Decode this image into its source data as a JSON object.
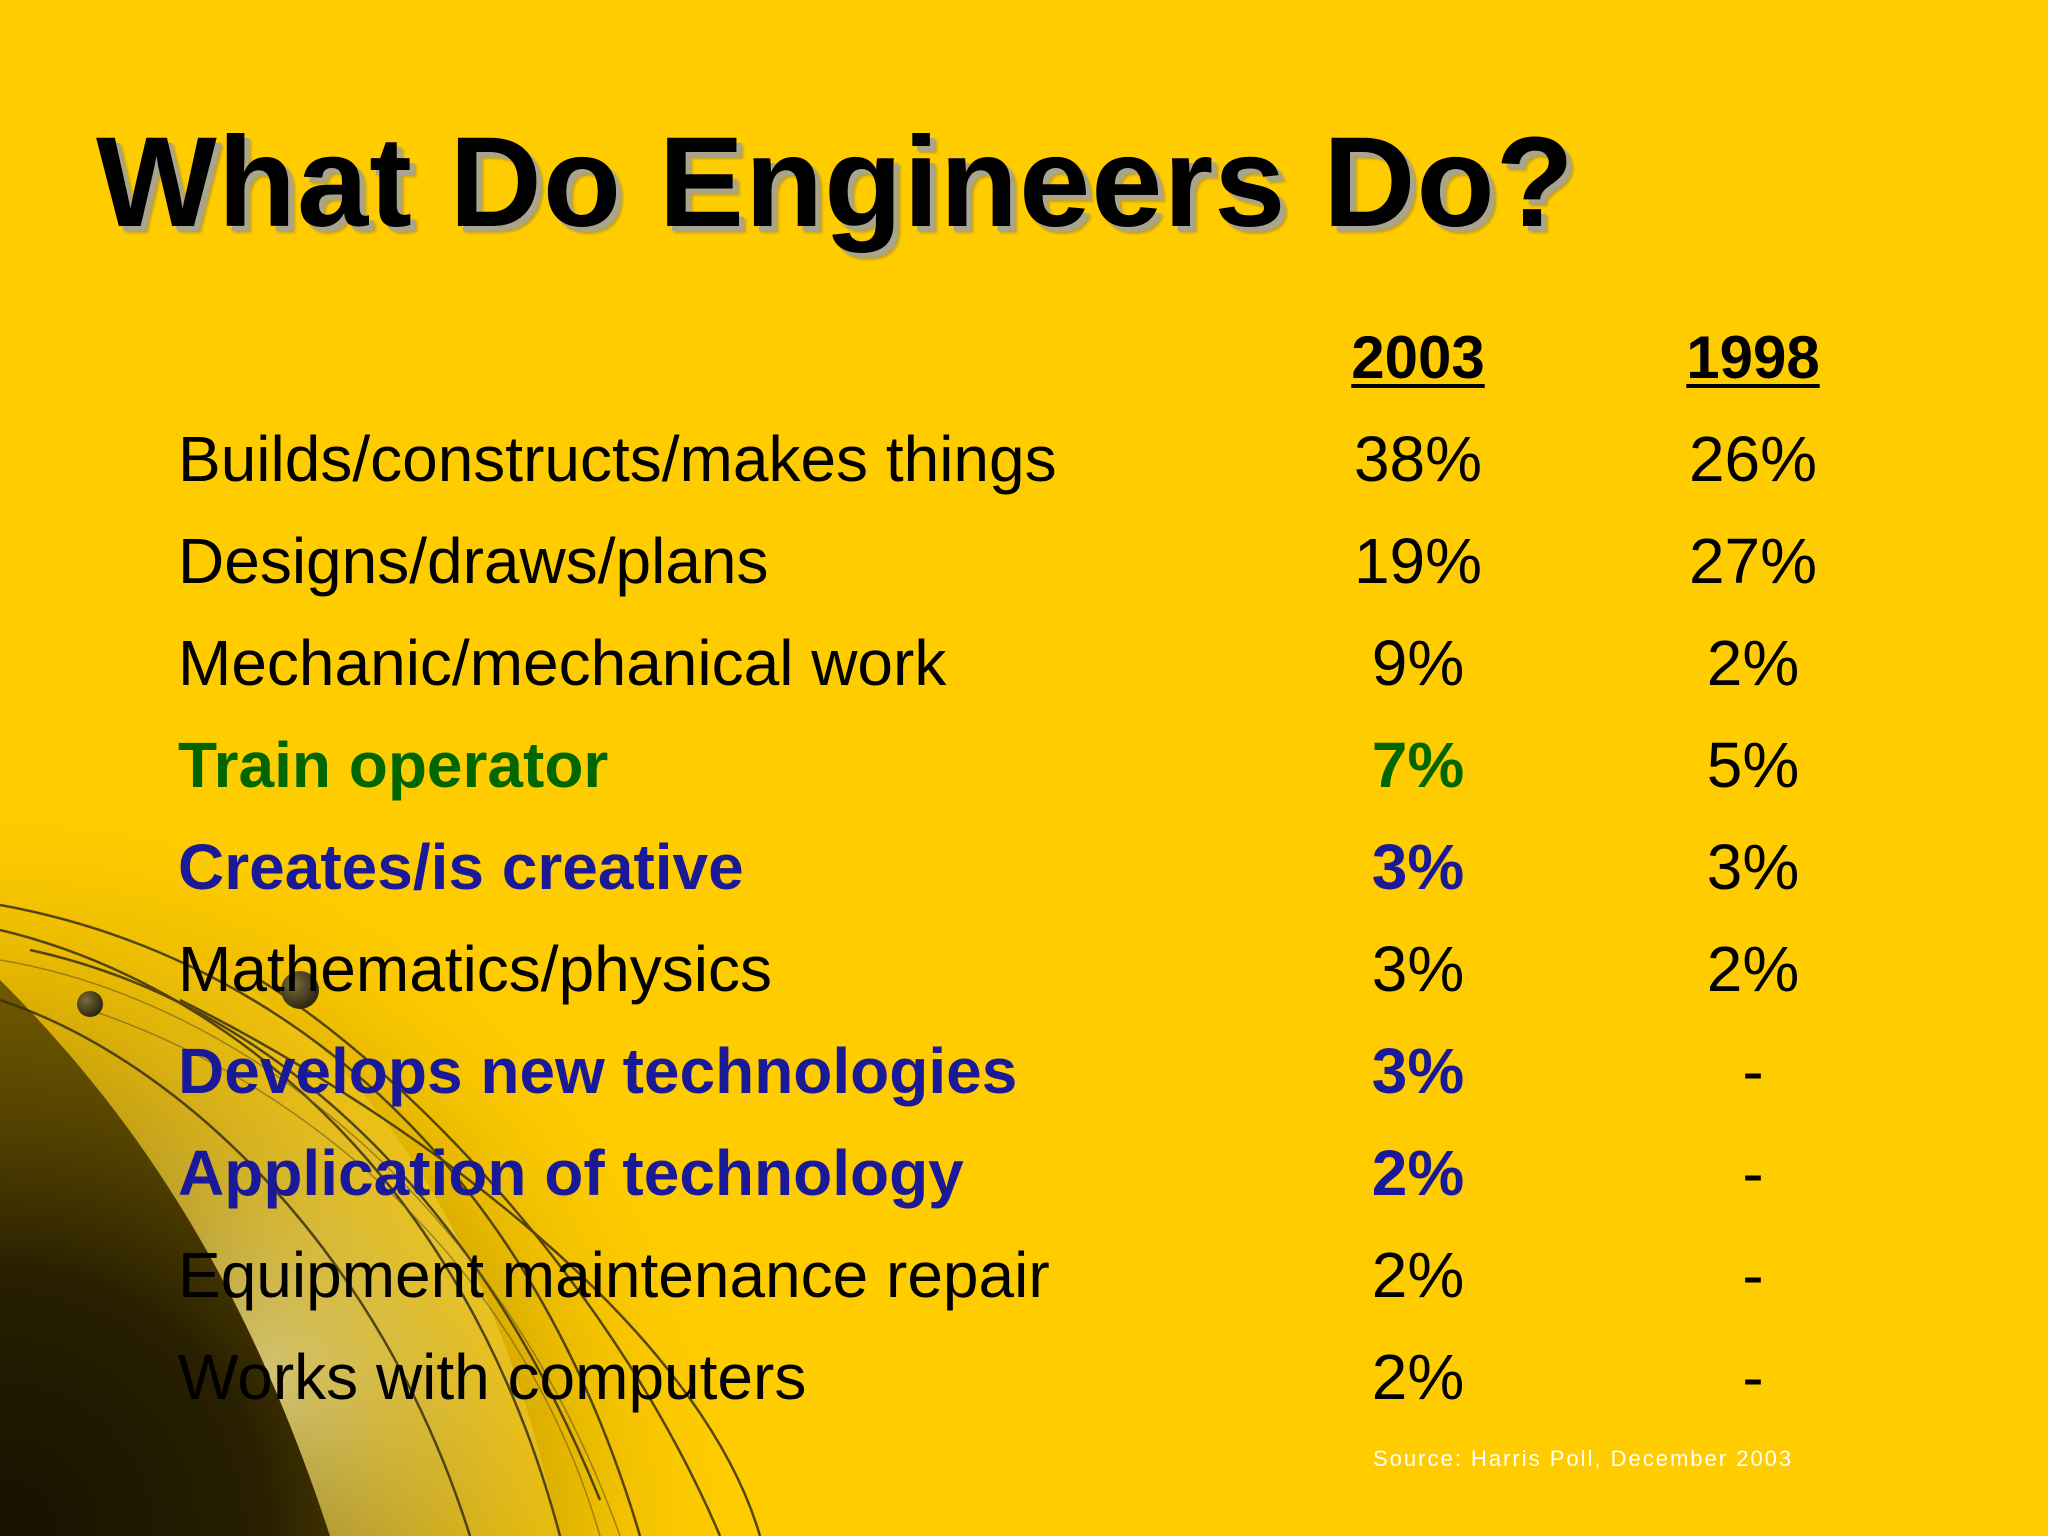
{
  "slide": {
    "title": "What Do Engineers Do?",
    "columns": [
      "2003",
      "1998"
    ],
    "rows": [
      {
        "label": "Builds/constructs/makes things",
        "v2003": "38%",
        "v1998": "26%",
        "style": "normal"
      },
      {
        "label": "Designs/draws/plans",
        "v2003": "19%",
        "v1998": "27%",
        "style": "normal"
      },
      {
        "label": "Mechanic/mechanical work",
        "v2003": "9%",
        "v1998": "2%",
        "style": "normal"
      },
      {
        "label": "Train operator",
        "v2003": "7%",
        "v1998": "5%",
        "style": "green"
      },
      {
        "label": "Creates/is creative",
        "v2003": "3%",
        "v1998": "3%",
        "style": "blue"
      },
      {
        "label": "Mathematics/physics",
        "v2003": "3%",
        "v1998": "2%",
        "style": "normal"
      },
      {
        "label": "Develops new technologies",
        "v2003": "3%",
        "v1998": "-",
        "style": "blue"
      },
      {
        "label": "Application of technology",
        "v2003": "2%",
        "v1998": "-",
        "style": "blue"
      },
      {
        "label": "Equipment maintenance repair",
        "v2003": "2%",
        "v1998": "-",
        "style": "normal"
      },
      {
        "label": "Works with computers",
        "v2003": "2%",
        "v1998": "-",
        "style": "normal"
      }
    ],
    "source": "Source: Harris Poll, December 2003"
  },
  "colors": {
    "background": "#ffcc00",
    "highlight_green": "#006600",
    "highlight_blue": "#1a1a99",
    "text": "#000000",
    "source_text": "#ffffff"
  }
}
